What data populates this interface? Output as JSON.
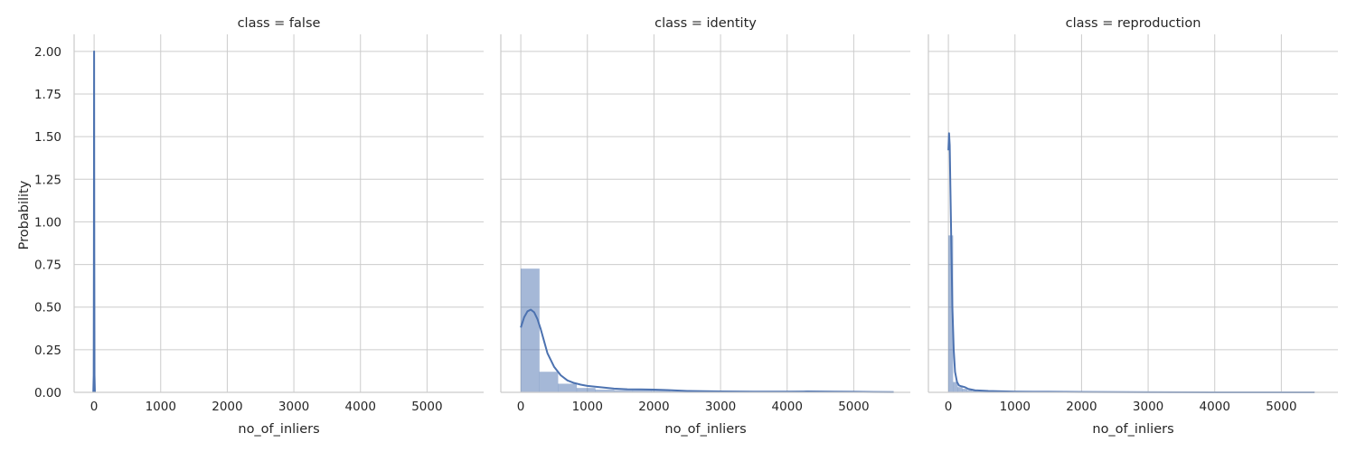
{
  "chart_data": {
    "type": "histogram-facet",
    "ylabel": "Probability",
    "xlabel": "no_of_inliers",
    "xlim": [
      -300,
      5850
    ],
    "ylim": [
      0,
      2.1
    ],
    "xticks": [
      "0",
      "1000",
      "2000",
      "3000",
      "4000",
      "5000"
    ],
    "xtick_values": [
      0,
      1000,
      2000,
      3000,
      4000,
      5000
    ],
    "yticks": [
      "0.00",
      "0.25",
      "0.50",
      "0.75",
      "1.00",
      "1.25",
      "1.50",
      "1.75",
      "2.00"
    ],
    "ytick_values": [
      0,
      0.25,
      0.5,
      0.75,
      1.0,
      1.25,
      1.5,
      1.75,
      2.0
    ],
    "grid": true,
    "bar_color": "#4c72b0",
    "panels": [
      {
        "title": "class = false",
        "bins": [
          {
            "x0": -2,
            "x1": 2,
            "y": 0.36
          }
        ],
        "kde": [
          [
            -12,
            0
          ],
          [
            -6,
            0.1
          ],
          [
            -3,
            0.8
          ],
          [
            -1,
            1.6
          ],
          [
            0,
            2.0
          ],
          [
            1,
            1.6
          ],
          [
            3,
            0.8
          ],
          [
            6,
            0.1
          ],
          [
            12,
            0
          ]
        ]
      },
      {
        "title": "class = identity",
        "bins": [
          {
            "x0": 0,
            "x1": 280,
            "y": 0.725
          },
          {
            "x0": 280,
            "x1": 560,
            "y": 0.12
          },
          {
            "x0": 560,
            "x1": 840,
            "y": 0.05
          },
          {
            "x0": 840,
            "x1": 1120,
            "y": 0.025
          },
          {
            "x0": 1120,
            "x1": 1400,
            "y": 0.015
          },
          {
            "x0": 1400,
            "x1": 1680,
            "y": 0.012
          },
          {
            "x0": 1680,
            "x1": 1960,
            "y": 0.012
          },
          {
            "x0": 1960,
            "x1": 2240,
            "y": 0.01
          },
          {
            "x0": 2240,
            "x1": 2520,
            "y": 0.006
          },
          {
            "x0": 2520,
            "x1": 2800,
            "y": 0.004
          },
          {
            "x0": 2800,
            "x1": 3080,
            "y": 0.003
          },
          {
            "x0": 3080,
            "x1": 3360,
            "y": 0.003
          },
          {
            "x0": 3360,
            "x1": 3640,
            "y": 0.003
          },
          {
            "x0": 3640,
            "x1": 3920,
            "y": 0.003
          },
          {
            "x0": 3920,
            "x1": 4200,
            "y": 0.003
          },
          {
            "x0": 4200,
            "x1": 4480,
            "y": 0.004
          },
          {
            "x0": 4480,
            "x1": 4760,
            "y": 0.003
          },
          {
            "x0": 4760,
            "x1": 5040,
            "y": 0.002
          },
          {
            "x0": 5040,
            "x1": 5320,
            "y": 0.002
          },
          {
            "x0": 5320,
            "x1": 5600,
            "y": 0.002
          }
        ],
        "kde": [
          [
            0,
            0.38
          ],
          [
            50,
            0.44
          ],
          [
            100,
            0.475
          ],
          [
            150,
            0.485
          ],
          [
            200,
            0.47
          ],
          [
            250,
            0.43
          ],
          [
            300,
            0.37
          ],
          [
            350,
            0.3
          ],
          [
            400,
            0.23
          ],
          [
            500,
            0.15
          ],
          [
            600,
            0.1
          ],
          [
            700,
            0.07
          ],
          [
            800,
            0.055
          ],
          [
            900,
            0.045
          ],
          [
            1000,
            0.038
          ],
          [
            1200,
            0.03
          ],
          [
            1400,
            0.022
          ],
          [
            1600,
            0.018
          ],
          [
            1800,
            0.017
          ],
          [
            2000,
            0.016
          ],
          [
            2200,
            0.013
          ],
          [
            2500,
            0.008
          ],
          [
            3000,
            0.005
          ],
          [
            3500,
            0.004
          ],
          [
            4000,
            0.004
          ],
          [
            4300,
            0.005
          ],
          [
            4700,
            0.004
          ],
          [
            5000,
            0.003
          ],
          [
            5300,
            0.002
          ],
          [
            5600,
            0.001
          ]
        ]
      },
      {
        "title": "class = reproduction",
        "bins": [
          {
            "x0": 0,
            "x1": 70,
            "y": 0.92
          },
          {
            "x0": 70,
            "x1": 140,
            "y": 0.06
          },
          {
            "x0": 140,
            "x1": 210,
            "y": 0.03
          },
          {
            "x0": 210,
            "x1": 280,
            "y": 0.02
          },
          {
            "x0": 280,
            "x1": 350,
            "y": 0.012
          },
          {
            "x0": 350,
            "x1": 420,
            "y": 0.008
          },
          {
            "x0": 420,
            "x1": 490,
            "y": 0.006
          },
          {
            "x0": 490,
            "x1": 560,
            "y": 0.006
          },
          {
            "x0": 560,
            "x1": 630,
            "y": 0.006
          },
          {
            "x0": 630,
            "x1": 700,
            "y": 0.005
          },
          {
            "x0": 700,
            "x1": 1000,
            "y": 0.003
          },
          {
            "x0": 1000,
            "x1": 1500,
            "y": 0.002
          },
          {
            "x0": 1500,
            "x1": 2100,
            "y": 0.002
          }
        ],
        "kde": [
          [
            0,
            1.42
          ],
          [
            10,
            1.52
          ],
          [
            20,
            1.45
          ],
          [
            30,
            1.2
          ],
          [
            45,
            0.85
          ],
          [
            60,
            0.5
          ],
          [
            80,
            0.25
          ],
          [
            100,
            0.12
          ],
          [
            130,
            0.06
          ],
          [
            160,
            0.04
          ],
          [
            200,
            0.035
          ],
          [
            250,
            0.03
          ],
          [
            300,
            0.02
          ],
          [
            400,
            0.012
          ],
          [
            600,
            0.008
          ],
          [
            800,
            0.006
          ],
          [
            1000,
            0.004
          ],
          [
            1500,
            0.003
          ],
          [
            2000,
            0.002
          ],
          [
            2500,
            0.001
          ],
          [
            3000,
            0.0005
          ],
          [
            4000,
            0.0002
          ],
          [
            5000,
            0.0001
          ],
          [
            5500,
            0.0
          ]
        ]
      }
    ]
  }
}
